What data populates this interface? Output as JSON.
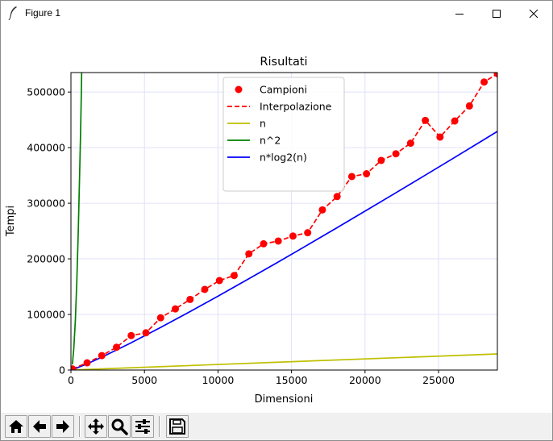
{
  "window": {
    "title": "Figure 1",
    "icons": {
      "app": "feather-icon",
      "minimize": "minimize-icon",
      "maximize": "maximize-icon",
      "close": "close-icon"
    }
  },
  "toolbar": {
    "buttons": [
      {
        "name": "home-button",
        "icon": "home-icon"
      },
      {
        "name": "back-button",
        "icon": "arrow-left-icon"
      },
      {
        "name": "forward-button",
        "icon": "arrow-right-icon"
      },
      {
        "name": "pan-button",
        "icon": "move-icon"
      },
      {
        "name": "zoom-button",
        "icon": "magnifier-icon"
      },
      {
        "name": "configure-subplots-button",
        "icon": "sliders-icon"
      },
      {
        "name": "save-button",
        "icon": "floppy-disk-icon"
      }
    ]
  },
  "chart_data": {
    "type": "line",
    "title": "Risultati",
    "xlabel": "Dimensioni",
    "ylabel": "Tempi",
    "xlim": [
      0,
      29000
    ],
    "ylim": [
      0,
      535000
    ],
    "xticks": [
      0,
      5000,
      10000,
      15000,
      20000,
      25000
    ],
    "xtick_labels": [
      "0",
      "5000",
      "10000",
      "15000",
      "20000",
      "25000"
    ],
    "yticks": [
      0,
      100000,
      200000,
      300000,
      400000,
      500000
    ],
    "ytick_labels": [
      "0",
      "100000",
      "200000",
      "300000",
      "400000",
      "500000"
    ],
    "grid": true,
    "legend_position": "top-center",
    "colors": {
      "campioni": "#ff0000",
      "interpolazione": "#ff0000",
      "n": "#bfbf00",
      "n2": "#008000",
      "nlog2n": "#0000ff",
      "grid": "#e0e0f8"
    },
    "series": [
      {
        "name": "Campioni",
        "kind": "markers",
        "x": [
          100,
          1100,
          2100,
          3100,
          4100,
          5100,
          6100,
          7100,
          8100,
          9100,
          10100,
          11100,
          12100,
          13100,
          14100,
          15100,
          16100,
          17100,
          18100,
          19100,
          20100,
          21100,
          22100,
          23100,
          24100,
          25100,
          26100,
          27100,
          28100,
          29000
        ],
        "y": [
          2000,
          13000,
          26000,
          41000,
          62000,
          67000,
          94000,
          110000,
          127000,
          145000,
          161000,
          170000,
          209000,
          227000,
          232000,
          241000,
          247000,
          288000,
          312000,
          348000,
          353000,
          377000,
          389000,
          408000,
          449000,
          419000,
          448000,
          475000,
          518000,
          533000
        ]
      },
      {
        "name": "Interpolazione",
        "kind": "dashed-line",
        "x": [
          100,
          1100,
          2100,
          3100,
          4100,
          5100,
          6100,
          7100,
          8100,
          9100,
          10100,
          11100,
          12100,
          13100,
          14100,
          15100,
          16100,
          17100,
          18100,
          19100,
          20100,
          21100,
          22100,
          23100,
          24100,
          25100,
          26100,
          27100,
          28100,
          29000
        ],
        "y": [
          2000,
          13000,
          26000,
          41000,
          62000,
          67000,
          94000,
          110000,
          127000,
          145000,
          161000,
          170000,
          209000,
          227000,
          232000,
          241000,
          247000,
          288000,
          312000,
          348000,
          353000,
          377000,
          389000,
          408000,
          449000,
          419000,
          448000,
          475000,
          518000,
          533000
        ]
      },
      {
        "name": "n",
        "kind": "line",
        "x": [
          100,
          29000
        ],
        "y": [
          100,
          29000
        ]
      },
      {
        "name": "n^2",
        "kind": "line",
        "x": [
          100,
          200,
          300,
          400,
          500,
          600,
          650,
          700,
          731
        ],
        "y": [
          10000,
          40000,
          90000,
          160000,
          250000,
          360000,
          422500,
          490000,
          535000
        ]
      },
      {
        "name": "n*log2(n)",
        "kind": "line",
        "x": [
          100,
          1000,
          2000,
          4000,
          6000,
          8000,
          10000,
          12000,
          14000,
          16000,
          18000,
          20000,
          22000,
          24000,
          26000,
          28000,
          29000
        ],
        "y": [
          664,
          9966,
          21932,
          47863,
          75304,
          103726,
          132877,
          162624,
          192861,
          223509,
          254509,
          285754,
          317245,
          348982,
          380934,
          413076,
          429228
        ]
      }
    ]
  }
}
